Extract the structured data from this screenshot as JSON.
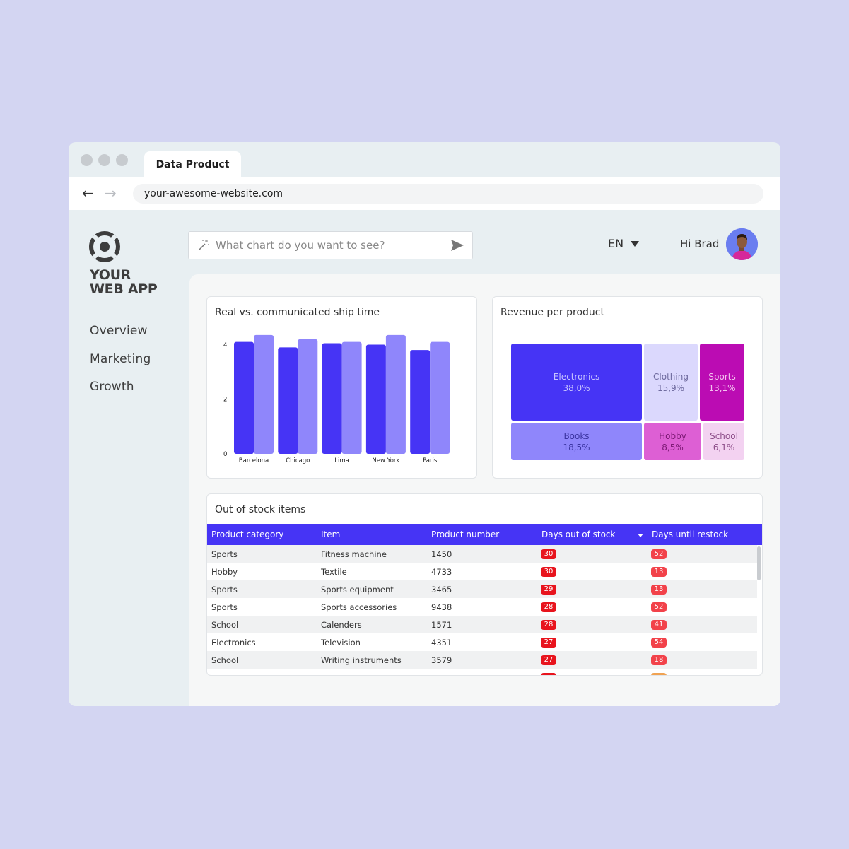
{
  "browser": {
    "tab_title": "Data Product",
    "url": "your-awesome-website.com"
  },
  "sidebar": {
    "logo_line1": "YOUR",
    "logo_line2": "WEB APP",
    "items": [
      {
        "label": "Overview"
      },
      {
        "label": "Marketing"
      },
      {
        "label": "Growth"
      }
    ]
  },
  "header": {
    "search_placeholder": "What chart do you want to see?",
    "language": "EN",
    "greeting": "Hi Brad"
  },
  "colors": {
    "accent": "#4634f5",
    "bar_real": "#4634f5",
    "bar_communicated": "#8f86fb",
    "badge_red": "#e8141d",
    "badge_light_red": "#f2424a"
  },
  "chart_data": [
    {
      "type": "bar",
      "title": "Real vs. communicated ship time",
      "categories": [
        "Barcelona",
        "Chicago",
        "Lima",
        "New York",
        "Paris"
      ],
      "series": [
        {
          "values": [
            4.1,
            3.9,
            4.05,
            4.0,
            3.8
          ]
        },
        {
          "values": [
            4.35,
            4.2,
            4.1,
            4.35,
            4.1
          ]
        }
      ],
      "ylim": [
        0,
        4.4
      ],
      "yticks": [
        "0",
        "2",
        "4"
      ],
      "grid": false
    },
    {
      "type": "treemap",
      "title": "Revenue per product",
      "items": [
        {
          "label": "Electronics",
          "value": "38,0%",
          "share": 38.0,
          "color": "#4634f5",
          "text_color": "#c8c3ff"
        },
        {
          "label": "Clothing",
          "value": "15,9%",
          "share": 15.9,
          "color": "#dbd8fd",
          "text_color": "#6e6a9e"
        },
        {
          "label": "Sports",
          "value": "13,1%",
          "share": 13.1,
          "color": "#bb0cb3",
          "text_color": "#f3c2ef"
        },
        {
          "label": "Books",
          "value": "18,5%",
          "share": 18.5,
          "color": "#8f86fb",
          "text_color": "#3a33a0"
        },
        {
          "label": "Hobby",
          "value": "8,5%",
          "share": 8.5,
          "color": "#dd5fd4",
          "text_color": "#7c1a75"
        },
        {
          "label": "School",
          "value": "6,1%",
          "share": 6.1,
          "color": "#f3d2f1",
          "text_color": "#8e4f8a"
        }
      ]
    }
  ],
  "table": {
    "title": "Out of stock items",
    "columns": [
      "Product category",
      "Item",
      "Product number",
      "Days out of stock",
      "Days until restock"
    ],
    "rows": [
      {
        "category": "Sports",
        "item": "Fitness machine",
        "number": "1450",
        "days_out": "30",
        "days_restock": "52"
      },
      {
        "category": "Hobby",
        "item": "Textile",
        "number": "4733",
        "days_out": "30",
        "days_restock": "13"
      },
      {
        "category": "Sports",
        "item": "Sports equipment",
        "number": "3465",
        "days_out": "29",
        "days_restock": "13"
      },
      {
        "category": "Sports",
        "item": "Sports accessories",
        "number": "9438",
        "days_out": "28",
        "days_restock": "52"
      },
      {
        "category": "School",
        "item": "Calenders",
        "number": "1571",
        "days_out": "28",
        "days_restock": "41"
      },
      {
        "category": "Electronics",
        "item": "Television",
        "number": "4351",
        "days_out": "27",
        "days_restock": "54"
      },
      {
        "category": "School",
        "item": "Writing instruments",
        "number": "3579",
        "days_out": "27",
        "days_restock": "18"
      }
    ]
  }
}
